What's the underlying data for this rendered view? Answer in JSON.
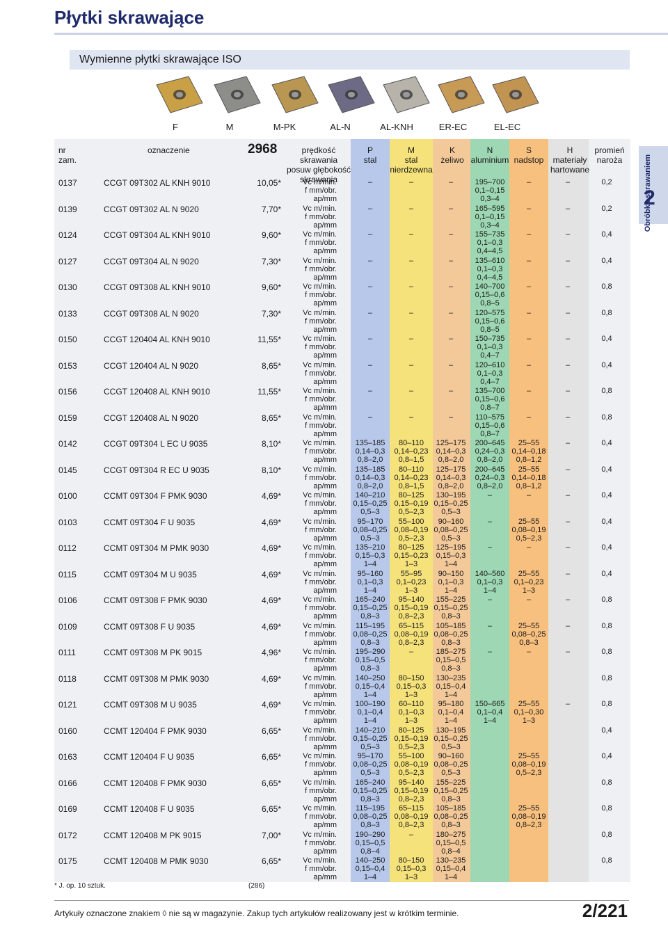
{
  "page": {
    "title": "Płytki skrawające",
    "subtitle": "Wymienne płytki skrawające ISO",
    "side_tab_number": "2",
    "side_tab_label": "Obróbka skrawaniem",
    "page_number": "2/221",
    "bottom_note": "Artykuły oznaczone znakiem ◊ nie są w magazynie. Zakup tych artykułów realizowany jest w krótkim terminie.",
    "footnote": "* J. op. 10 sztuk.",
    "footnote_ref": "(286)"
  },
  "grades": [
    "F",
    "M",
    "M-PK",
    "AL-N",
    "AL-KNH",
    "ER-EC",
    "EL-EC"
  ],
  "photos": [
    {
      "name": "insert-photo-gold",
      "color": "#c9a046"
    },
    {
      "name": "insert-photo-grey",
      "color": "#8d8e8a"
    },
    {
      "name": "insert-photo-gold-purple",
      "color": "#b99753"
    },
    {
      "name": "insert-photo-purple",
      "color": "#6d6a86"
    },
    {
      "name": "insert-photo-silver",
      "color": "#b7b3aa"
    },
    {
      "name": "insert-photo-bronze",
      "color": "#c79a55"
    },
    {
      "name": "insert-photo-bronze-2",
      "color": "#c29452"
    }
  ],
  "headers": {
    "nr": "nr",
    "zam": "zam.",
    "oznaczenie": "oznaczenie",
    "code": "2968",
    "params": [
      "prędkość skrawania",
      "posuw głębokość",
      "skrawania"
    ],
    "P": [
      "P",
      "stal"
    ],
    "M": [
      "M",
      "stal",
      "nierdzewna"
    ],
    "K": [
      "K",
      "żeliwo"
    ],
    "N": [
      "N",
      "aluminium"
    ],
    "S": [
      "S",
      "nadstop"
    ],
    "H": [
      "H",
      "materiały",
      "hartowane"
    ],
    "radius": [
      "promień",
      "naroża"
    ]
  },
  "colors": {
    "P": "#b7c8ea",
    "M": "#f5e27a",
    "K": "#f3c99a",
    "N": "#9dd7b3",
    "S": "#f7c07f",
    "H": "#e3e3e3",
    "panel": "#eef0f3"
  },
  "param_labels": [
    "Vc m/min.",
    "f mm/obr.",
    "ap/mm"
  ],
  "rows": [
    {
      "nr": "0137",
      "desig": "CCGT 09T302 AL KNH 9010",
      "price": "10,05*",
      "P": [
        "–",
        "",
        ""
      ],
      "M": [
        "–",
        "",
        ""
      ],
      "K": [
        "–",
        "",
        ""
      ],
      "N": [
        "195–700",
        "0,1–0,15",
        "0,3–4"
      ],
      "S": [
        "–",
        "",
        ""
      ],
      "H": [
        "–",
        "",
        ""
      ],
      "r": "0,2"
    },
    {
      "nr": "0139",
      "desig": "CCGT 09T302 AL N 9020",
      "price": "7,70*",
      "P": [
        "–",
        "",
        ""
      ],
      "M": [
        "–",
        "",
        ""
      ],
      "K": [
        "–",
        "",
        ""
      ],
      "N": [
        "165–595",
        "0,1–0,15",
        "0,3–4"
      ],
      "S": [
        "–",
        "",
        ""
      ],
      "H": [
        "–",
        "",
        ""
      ],
      "r": "0,2"
    },
    {
      "nr": "0124",
      "desig": "CCGT 09T304 AL KNH 9010",
      "price": "9,60*",
      "P": [
        "–",
        "",
        ""
      ],
      "M": [
        "–",
        "",
        ""
      ],
      "K": [
        "–",
        "",
        ""
      ],
      "N": [
        "155–735",
        "0,1–0,3",
        "0,4–4,5"
      ],
      "S": [
        "–",
        "",
        ""
      ],
      "H": [
        "–",
        "",
        ""
      ],
      "r": "0,4"
    },
    {
      "nr": "0127",
      "desig": "CCGT 09T304 AL N 9020",
      "price": "7,30*",
      "P": [
        "–",
        "",
        ""
      ],
      "M": [
        "–",
        "",
        ""
      ],
      "K": [
        "–",
        "",
        ""
      ],
      "N": [
        "135–610",
        "0,1–0,3",
        "0,4–4,5"
      ],
      "S": [
        "–",
        "",
        ""
      ],
      "H": [
        "–",
        "",
        ""
      ],
      "r": "0,4"
    },
    {
      "nr": "0130",
      "desig": "CCGT 09T308 AL KNH 9010",
      "price": "9,60*",
      "P": [
        "–",
        "",
        ""
      ],
      "M": [
        "–",
        "",
        ""
      ],
      "K": [
        "–",
        "",
        ""
      ],
      "N": [
        "140–700",
        "0,15–0,6",
        "0,8–5"
      ],
      "S": [
        "–",
        "",
        ""
      ],
      "H": [
        "–",
        "",
        ""
      ],
      "r": "0,8"
    },
    {
      "nr": "0133",
      "desig": "CCGT 09T308 AL N 9020",
      "price": "7,30*",
      "P": [
        "–",
        "",
        ""
      ],
      "M": [
        "–",
        "",
        ""
      ],
      "K": [
        "–",
        "",
        ""
      ],
      "N": [
        "120–575",
        "0,15–0,6",
        "0,8–5"
      ],
      "S": [
        "–",
        "",
        ""
      ],
      "H": [
        "–",
        "",
        ""
      ],
      "r": "0,8"
    },
    {
      "nr": "0150",
      "desig": "CCGT 120404 AL KNH 9010",
      "price": "11,55*",
      "P": [
        "–",
        "",
        ""
      ],
      "M": [
        "–",
        "",
        ""
      ],
      "K": [
        "–",
        "",
        ""
      ],
      "N": [
        "150–735",
        "0,1–0,3",
        "0,4–7"
      ],
      "S": [
        "–",
        "",
        ""
      ],
      "H": [
        "–",
        "",
        ""
      ],
      "r": "0,4"
    },
    {
      "nr": "0153",
      "desig": "CCGT 120404 AL N 9020",
      "price": "8,65*",
      "P": [
        "–",
        "",
        ""
      ],
      "M": [
        "–",
        "",
        ""
      ],
      "K": [
        "–",
        "",
        ""
      ],
      "N": [
        "120–610",
        "0,1–0,3",
        "0,4–7"
      ],
      "S": [
        "–",
        "",
        ""
      ],
      "H": [
        "–",
        "",
        ""
      ],
      "r": "0,4"
    },
    {
      "nr": "0156",
      "desig": "CCGT 120408 AL KNH 9010",
      "price": "11,55*",
      "P": [
        "–",
        "",
        ""
      ],
      "M": [
        "–",
        "",
        ""
      ],
      "K": [
        "–",
        "",
        ""
      ],
      "N": [
        "135–700",
        "0,15–0,6",
        "0,8–7"
      ],
      "S": [
        "–",
        "",
        ""
      ],
      "H": [
        "–",
        "",
        ""
      ],
      "r": "0,8"
    },
    {
      "nr": "0159",
      "desig": "CCGT 120408 AL N 9020",
      "price": "8,65*",
      "P": [
        "–",
        "",
        ""
      ],
      "M": [
        "–",
        "",
        ""
      ],
      "K": [
        "–",
        "",
        ""
      ],
      "N": [
        "110–575",
        "0,15–0,6",
        "0,8–7"
      ],
      "S": [
        "–",
        "",
        ""
      ],
      "H": [
        "–",
        "",
        ""
      ],
      "r": "0,8"
    },
    {
      "nr": "0142",
      "desig": "CCGT 09T304 L EC U 9035",
      "price": "8,10*",
      "P": [
        "135–185",
        "0,14–0,3",
        "0,8–2,0"
      ],
      "M": [
        "80–110",
        "0,14–0,23",
        "0,8–1,5"
      ],
      "K": [
        "125–175",
        "0,14–0,3",
        "0,8–2,0"
      ],
      "N": [
        "200–645",
        "0,24–0,3",
        "0,8–2,0"
      ],
      "S": [
        "25–55",
        "0,14–0,18",
        "0,8–1,2"
      ],
      "H": [
        "–",
        "",
        ""
      ],
      "r": "0,4"
    },
    {
      "nr": "0145",
      "desig": "CCGT 09T304 R EC U 9035",
      "price": "8,10*",
      "P": [
        "135–185",
        "0,14–0,3",
        "0,8–2,0"
      ],
      "M": [
        "80–110",
        "0,14–0,23",
        "0,8–1,5"
      ],
      "K": [
        "125–175",
        "0,14–0,3",
        "0,8–2,0"
      ],
      "N": [
        "200–645",
        "0,24–0,3",
        "0,8–2,0"
      ],
      "S": [
        "25–55",
        "0,14–0,18",
        "0,8–1,2"
      ],
      "H": [
        "–",
        "",
        ""
      ],
      "r": "0,4"
    },
    {
      "nr": "0100",
      "desig": "CCMT 09T304 F PMK 9030",
      "price": "4,69*",
      "P": [
        "140–210",
        "0,15–0,25",
        "0,5–3"
      ],
      "M": [
        "80–125",
        "0,15–0,19",
        "0,5–2,3"
      ],
      "K": [
        "130–195",
        "0,15–0,25",
        "0,5–3"
      ],
      "N": [
        "–",
        "",
        ""
      ],
      "S": [
        "–",
        "",
        ""
      ],
      "H": [
        "–",
        "",
        ""
      ],
      "r": "0,4"
    },
    {
      "nr": "0103",
      "desig": "CCMT 09T304 F U 9035",
      "price": "4,69*",
      "P": [
        "95–170",
        "0,08–0,25",
        "0,5–3"
      ],
      "M": [
        "55–100",
        "0,08–0,19",
        "0,5–2,3"
      ],
      "K": [
        "90–160",
        "0,08–0,25",
        "0,5–3"
      ],
      "N": [
        "–",
        "",
        ""
      ],
      "S": [
        "25–55",
        "0,08–0,19",
        "0,5–2,3"
      ],
      "H": [
        "–",
        "",
        ""
      ],
      "r": "0,4"
    },
    {
      "nr": "0112",
      "desig": "CCMT 09T304 M PMK 9030",
      "price": "4,69*",
      "P": [
        "135–210",
        "0,15–0,3",
        "1–4"
      ],
      "M": [
        "80–125",
        "0,15–0,23",
        "1–3"
      ],
      "K": [
        "125–195",
        "0,15–0,3",
        "1–4"
      ],
      "N": [
        "–",
        "",
        ""
      ],
      "S": [
        "–",
        "",
        ""
      ],
      "H": [
        "–",
        "",
        ""
      ],
      "r": "0,4"
    },
    {
      "nr": "0115",
      "desig": "CCMT 09T304 M U 9035",
      "price": "4,69*",
      "P": [
        "95–160",
        "0,1–0,3",
        "1–4"
      ],
      "M": [
        "55–95",
        "0,1–0,23",
        "1–3"
      ],
      "K": [
        "90–150",
        "0,1–0,3",
        "1–4"
      ],
      "N": [
        "140–560",
        "0,1–0,3",
        "1–4"
      ],
      "S": [
        "25–55",
        "0,1–0,23",
        "1–3"
      ],
      "H": [
        "–",
        "",
        ""
      ],
      "r": "0,4"
    },
    {
      "nr": "0106",
      "desig": "CCMT 09T308 F PMK 9030",
      "price": "4,69*",
      "P": [
        "165–240",
        "0,15–0,25",
        "0,8–3"
      ],
      "M": [
        "95–140",
        "0,15–0,19",
        "0,8–2,3"
      ],
      "K": [
        "155–225",
        "0,15–0,25",
        "0,8–3"
      ],
      "N": [
        "–",
        "",
        ""
      ],
      "S": [
        "–",
        "",
        ""
      ],
      "H": [
        "–",
        "",
        ""
      ],
      "r": "0,8"
    },
    {
      "nr": "0109",
      "desig": "CCMT 09T308 F U 9035",
      "price": "4,69*",
      "P": [
        "115–195",
        "0,08–0,25",
        "0,8–3"
      ],
      "M": [
        "65–115",
        "0,08–0,19",
        "0,8–2,3"
      ],
      "K": [
        "105–185",
        "0,08–0,25",
        "0,8–3"
      ],
      "N": [
        "–",
        "",
        ""
      ],
      "S": [
        "25–55",
        "0,08–0,25",
        "0,8–3"
      ],
      "H": [
        "–",
        "",
        ""
      ],
      "r": "0,8"
    },
    {
      "nr": "0111",
      "desig": "CCMT 09T308 M PK 9015",
      "price": "4,96*",
      "P": [
        "195–290",
        "0,15–0,5",
        "0,8–3"
      ],
      "M": [
        "–",
        "",
        ""
      ],
      "K": [
        "185–275",
        "0,15–0,5",
        "0,8–3"
      ],
      "N": [
        "–",
        "",
        ""
      ],
      "S": [
        "–",
        "",
        ""
      ],
      "H": [
        "–",
        "",
        ""
      ],
      "r": "0,8"
    },
    {
      "nr": "0118",
      "desig": "CCMT 09T308 M PMK 9030",
      "price": "4,69*",
      "P": [
        "140–250",
        "0,15–0,4",
        "1–4"
      ],
      "M": [
        "80–150",
        "0,15–0,3",
        "1–3"
      ],
      "K": [
        "130–235",
        "0,15–0,4",
        "1–4"
      ],
      "N": [
        "",
        "",
        ""
      ],
      "S": [
        "",
        "",
        ""
      ],
      "H": [
        "",
        "",
        ""
      ],
      "r": "0,8"
    },
    {
      "nr": "0121",
      "desig": "CCMT 09T308 M U 9035",
      "price": "4,69*",
      "P": [
        "100–190",
        "0,1–0,4",
        "1–4"
      ],
      "M": [
        "60–110",
        "0,1–0,3",
        "1–3"
      ],
      "K": [
        "95–180",
        "0,1–0,4",
        "1–4"
      ],
      "N": [
        "150–665",
        "0,1–0,4",
        "1–4"
      ],
      "S": [
        "25–55",
        "0,1–0,30",
        "1–3"
      ],
      "H": [
        "–",
        "",
        ""
      ],
      "r": "0,8"
    },
    {
      "nr": "0160",
      "desig": "CCMT 120404 F PMK 9030",
      "price": "6,65*",
      "P": [
        "140–210",
        "0,15–0,25",
        "0,5–3"
      ],
      "M": [
        "80–125",
        "0,15–0,19",
        "0,5–2,3"
      ],
      "K": [
        "130–195",
        "0,15–0,25",
        "0,5–3"
      ],
      "N": [
        "",
        "",
        ""
      ],
      "S": [
        "",
        "",
        ""
      ],
      "H": [
        "",
        "",
        ""
      ],
      "r": "0,4"
    },
    {
      "nr": "0163",
      "desig": "CCMT 120404 F U 9035",
      "price": "6,65*",
      "P": [
        "95–170",
        "0,08–0,25",
        "0,5–3"
      ],
      "M": [
        "55–100",
        "0,08–0,19",
        "0,5–2,3"
      ],
      "K": [
        "90–160",
        "0,08–0,25",
        "0,5–3"
      ],
      "N": [
        "",
        "",
        ""
      ],
      "S": [
        "25–55",
        "0,08–0,19",
        "0,5–2,3"
      ],
      "H": [
        "",
        "",
        ""
      ],
      "r": "0,4"
    },
    {
      "nr": "0166",
      "desig": "CCMT 120408 F PMK 9030",
      "price": "6,65*",
      "P": [
        "165–240",
        "0,15–0,25",
        "0,8–3"
      ],
      "M": [
        "95–140",
        "0,15–0,19",
        "0,8–2,3"
      ],
      "K": [
        "155–225",
        "0,15–0,25",
        "0,8–3"
      ],
      "N": [
        "",
        "",
        ""
      ],
      "S": [
        "",
        "",
        ""
      ],
      "H": [
        "",
        "",
        ""
      ],
      "r": "0,8"
    },
    {
      "nr": "0169",
      "desig": "CCMT 120408 F U 9035",
      "price": "6,65*",
      "P": [
        "115–195",
        "0,08–0,25",
        "0,8–3"
      ],
      "M": [
        "65–115",
        "0,08–0,19",
        "0,8–2,3"
      ],
      "K": [
        "105–185",
        "0,08–0,25",
        "0,8–3"
      ],
      "N": [
        "",
        "",
        ""
      ],
      "S": [
        "25–55",
        "0,08–0,19",
        "0,8–2,3"
      ],
      "H": [
        "",
        "",
        ""
      ],
      "r": "0,8"
    },
    {
      "nr": "0172",
      "desig": "CCMT 120408 M PK 9015",
      "price": "7,00*",
      "P": [
        "190–290",
        "0,15–0,5",
        "0,8–4"
      ],
      "M": [
        "–",
        "",
        ""
      ],
      "K": [
        "180–275",
        "0,15–0,5",
        "0,8–4"
      ],
      "N": [
        "",
        "",
        ""
      ],
      "S": [
        "",
        "",
        ""
      ],
      "H": [
        "",
        "",
        ""
      ],
      "r": "0,8"
    },
    {
      "nr": "0175",
      "desig": "CCMT 120408 M PMK 9030",
      "price": "6,65*",
      "P": [
        "140–250",
        "0,15–0,4",
        "1–4"
      ],
      "M": [
        "80–150",
        "0,15–0,3",
        "1–3"
      ],
      "K": [
        "130–235",
        "0,15–0,4",
        "1–4"
      ],
      "N": [
        "",
        "",
        ""
      ],
      "S": [
        "",
        "",
        ""
      ],
      "H": [
        "",
        "",
        ""
      ],
      "r": "0,8"
    }
  ]
}
